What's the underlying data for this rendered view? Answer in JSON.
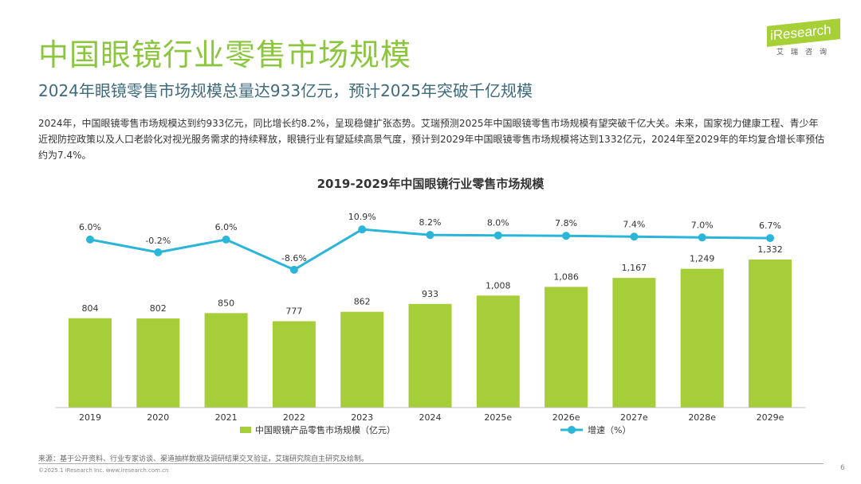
{
  "title": "中国眼镜行业零售市场规模",
  "subtitle": "2024年眼镜零售市场规模总量达933亿元，预计2025年突破千亿规模",
  "description": "2024年，中国眼镜零售市场规模达到约933亿元，同比增长约8.2%，呈现稳健扩张态势。艾瑞预测2025年中国眼镜零售市场规模有望突破千亿大关。未来，国家视力健康工程、青少年近视防控政策以及人口老龄化对视光服务需求的持续释放，眼镜行业有望延续高景气度，预计到2029年中国眼镜零售市场规模将达到1332亿元，2024年至2029年的年均复合增长率预估约为7.4%。",
  "logo": {
    "text": "iResearch",
    "cn": "艾瑞咨询"
  },
  "chart_data": {
    "type": "bar+line",
    "title": "2019-2029年中国眼镜行业零售市场规模",
    "categories": [
      "2019",
      "2020",
      "2021",
      "2022",
      "2023",
      "2024",
      "2025e",
      "2026e",
      "2027e",
      "2028e",
      "2029e"
    ],
    "series": [
      {
        "name": "中国眼镜产品零售市场规模（亿元）",
        "type": "bar",
        "color": "#a6ce39",
        "values": [
          804,
          802,
          850,
          777,
          862,
          933,
          1008,
          1086,
          1167,
          1249,
          1332
        ],
        "labels": [
          "804",
          "802",
          "850",
          "777",
          "862",
          "933",
          "1,008",
          "1,086",
          "1,167",
          "1,249",
          "1,332"
        ]
      },
      {
        "name": "增速（%）",
        "type": "line",
        "color": "#2bb5d8",
        "values": [
          6.0,
          -0.2,
          6.0,
          -8.6,
          10.9,
          8.2,
          8.0,
          7.8,
          7.4,
          7.0,
          6.7
        ],
        "labels": [
          "6.0%",
          "-0.2%",
          "6.0%",
          "-8.6%",
          "10.9%",
          "8.2%",
          "8.0%",
          "7.8%",
          "7.4%",
          "7.0%",
          "6.7%"
        ]
      }
    ],
    "legend": "bottom"
  },
  "footer": {
    "source": "来源：基于公开资料、行业专家访谈、渠道抽样数据及调研结果交叉验证，艾瑞研究院自主研究及绘制。",
    "copyright": "©2025.1 iResearch Inc. www.iresearch.com.cn",
    "page": "6"
  }
}
